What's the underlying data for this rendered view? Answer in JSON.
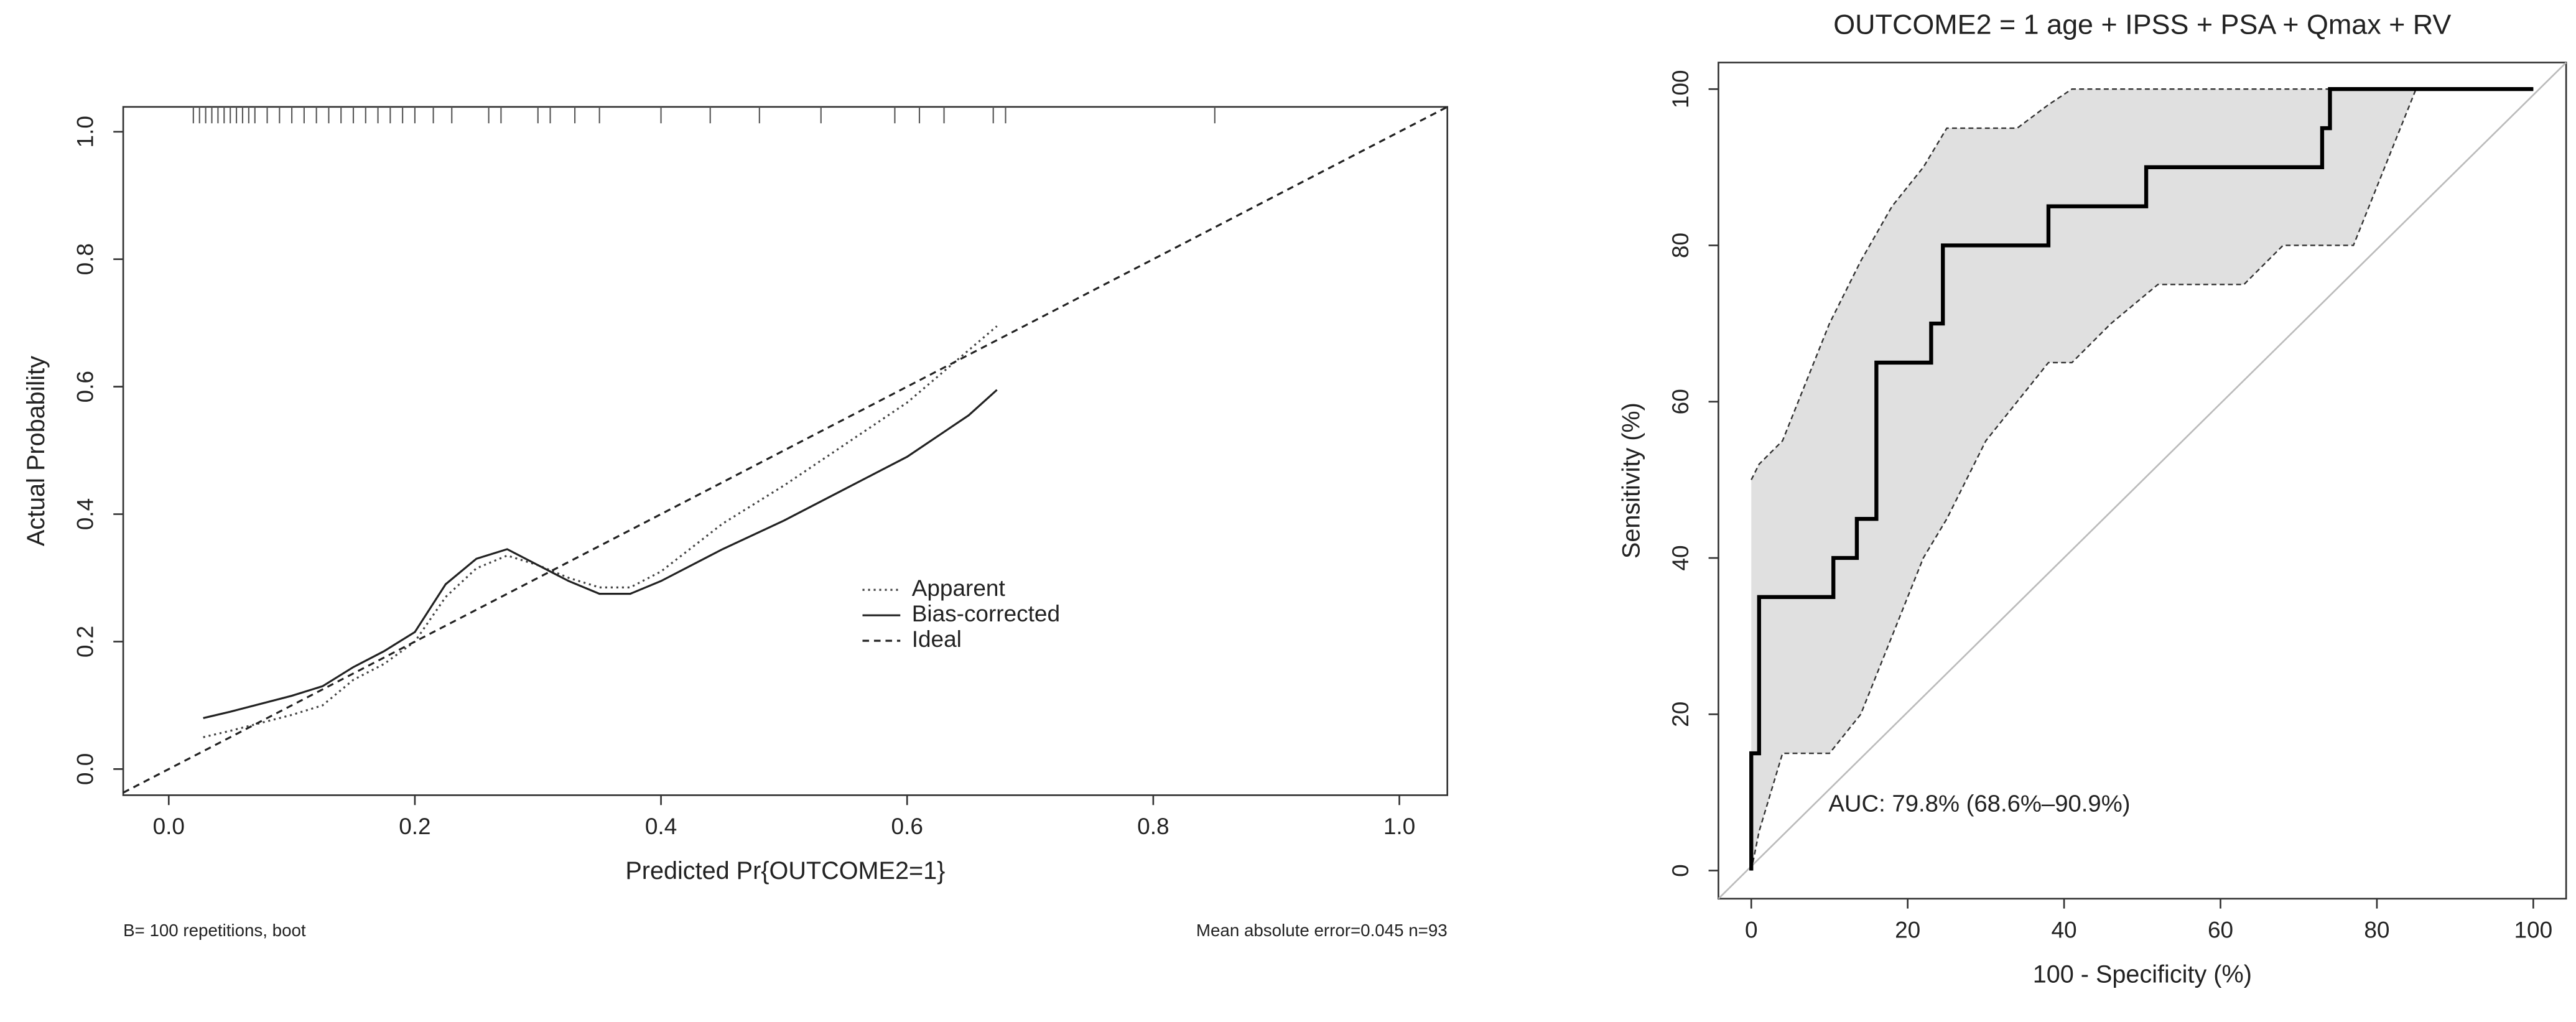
{
  "chart_data": [
    {
      "type": "line",
      "xlabel": "Predicted Pr{OUTCOME2=1}",
      "ylabel": "Actual Probability",
      "xlim": [
        -0.037,
        1.039
      ],
      "ylim": [
        -0.041,
        1.039
      ],
      "xticks": [
        {
          "value": 0,
          "label": "0.0"
        },
        0.2,
        0.4,
        0.6,
        0.8,
        {
          "value": 1,
          "label": "1.0"
        }
      ],
      "yticks": [
        {
          "value": 0,
          "label": "0.0"
        },
        0.2,
        0.4,
        0.6,
        0.8,
        {
          "value": 1,
          "label": "1.0"
        }
      ],
      "series": [
        {
          "name": "Apparent",
          "color": "#444444",
          "line_style": "dotted",
          "x": [
            0.028,
            0.05,
            0.1,
            0.125,
            0.15,
            0.175,
            0.2,
            0.225,
            0.25,
            0.275,
            0.3,
            0.325,
            0.35,
            0.375,
            0.4,
            0.45,
            0.5,
            0.55,
            0.6,
            0.673
          ],
          "values": [
            0.05,
            0.06,
            0.085,
            0.1,
            0.14,
            0.165,
            0.2,
            0.27,
            0.315,
            0.335,
            0.32,
            0.3,
            0.285,
            0.285,
            0.31,
            0.385,
            0.445,
            0.51,
            0.575,
            0.695
          ]
        },
        {
          "name": "Bias-corrected",
          "color": "#222222",
          "line_style": "solid",
          "x": [
            0.028,
            0.05,
            0.1,
            0.125,
            0.15,
            0.175,
            0.2,
            0.225,
            0.25,
            0.275,
            0.3,
            0.325,
            0.35,
            0.375,
            0.4,
            0.45,
            0.5,
            0.55,
            0.6,
            0.65,
            0.673
          ],
          "values": [
            0.08,
            0.09,
            0.115,
            0.13,
            0.16,
            0.185,
            0.215,
            0.29,
            0.33,
            0.345,
            0.32,
            0.295,
            0.275,
            0.275,
            0.295,
            0.345,
            0.39,
            0.44,
            0.49,
            0.555,
            0.595
          ]
        },
        {
          "name": "Ideal",
          "color": "#222222",
          "line_style": "dashed",
          "x": [
            -0.037,
            1.039
          ],
          "values": [
            -0.037,
            1.039
          ]
        }
      ],
      "rug": [
        0.02,
        0.025,
        0.03,
        0.035,
        0.04,
        0.045,
        0.05,
        0.055,
        0.06,
        0.065,
        0.07,
        0.08,
        0.09,
        0.1,
        0.11,
        0.12,
        0.13,
        0.14,
        0.15,
        0.16,
        0.17,
        0.18,
        0.19,
        0.2,
        0.215,
        0.23,
        0.26,
        0.27,
        0.3,
        0.31,
        0.33,
        0.35,
        0.4,
        0.44,
        0.48,
        0.53,
        0.59,
        0.61,
        0.63,
        0.67,
        0.68,
        0.85
      ],
      "annotations": [
        "B= 100 repetitions, boot",
        "Mean absolute error=0.045 n=93"
      ]
    },
    {
      "type": "roc",
      "title": "OUTCOME2 = 1 age + IPSS + PSA + Qmax + RV",
      "xlabel": "100 - Specificity (%)",
      "ylabel": "Sensitivity (%)",
      "xlim": [
        -4.2,
        104.2
      ],
      "ylim": [
        -3.6,
        103.4
      ],
      "xticks": [
        0,
        20,
        40,
        60,
        80,
        100
      ],
      "yticks": [
        0,
        20,
        40,
        60,
        80,
        100
      ],
      "x": [
        0,
        0,
        1,
        1,
        10.5,
        10.5,
        13.5,
        13.5,
        16,
        16,
        23,
        23,
        24.5,
        24.5,
        38,
        38,
        50.5,
        50.5,
        73,
        73,
        74,
        74,
        100
      ],
      "values": [
        0,
        15,
        15,
        35,
        35,
        40,
        40,
        45,
        45,
        65,
        65,
        70,
        70,
        80,
        80,
        85,
        85,
        90,
        90,
        95,
        95,
        100,
        100
      ],
      "color": "#000000",
      "band": {
        "color": "#e0e0e0",
        "x": [
          0,
          1,
          4,
          8,
          10,
          14,
          18,
          22,
          25,
          30,
          34,
          38,
          41,
          46,
          52,
          63,
          68,
          74,
          77,
          85,
          100
        ],
        "upper": [
          50,
          52,
          55,
          65,
          70,
          78,
          85,
          90,
          95,
          95,
          95,
          98,
          100,
          100,
          100,
          100,
          100,
          100,
          100,
          100,
          100
        ],
        "lower": [
          0,
          5,
          15,
          15,
          15,
          20,
          30,
          40,
          45,
          55,
          60,
          65,
          65,
          70,
          75,
          75,
          80,
          80,
          80,
          100,
          100
        ]
      },
      "annotations": [
        "AUC: 79.8% (68.6%–90.9%)"
      ]
    }
  ]
}
